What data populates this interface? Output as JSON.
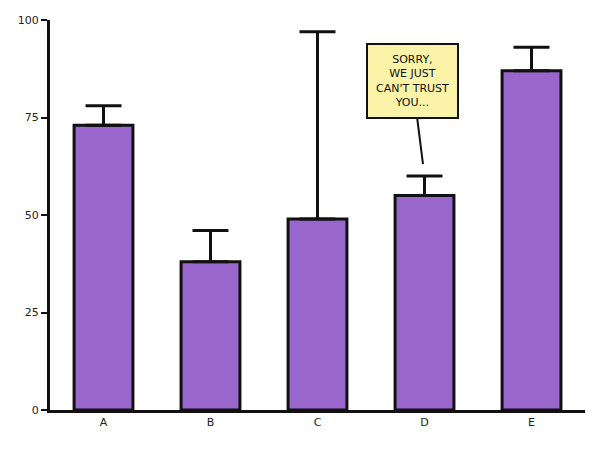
{
  "chart_data": {
    "type": "bar",
    "categories": [
      "A",
      "B",
      "C",
      "D",
      "E"
    ],
    "values": [
      73,
      38,
      49,
      55,
      87
    ],
    "error_plus": [
      5,
      8,
      48,
      5,
      6
    ],
    "color": "#9966cc",
    "ylim": [
      0,
      100
    ],
    "yticks": [
      0,
      25,
      50,
      75,
      100
    ],
    "grid": false,
    "annotations": [
      {
        "category": "D",
        "text": [
          "SORRY,",
          "WE JUST",
          "CAN'T TRUST",
          "YOU..."
        ]
      }
    ]
  }
}
